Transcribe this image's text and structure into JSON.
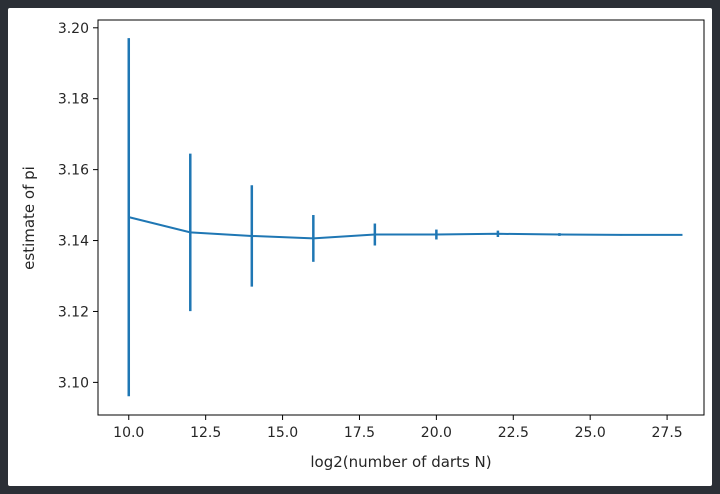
{
  "chart_data": {
    "type": "line",
    "title": "",
    "xlabel": "log2(number of darts N)",
    "ylabel": "estimate of pi",
    "xlim": [
      9.0,
      28.7
    ],
    "ylim": [
      3.0908,
      3.2022
    ],
    "xticks": [
      10.0,
      12.5,
      15.0,
      17.5,
      20.0,
      22.5,
      25.0,
      27.5
    ],
    "xtick_labels": [
      "10.0",
      "12.5",
      "15.0",
      "17.5",
      "20.0",
      "22.5",
      "25.0",
      "27.5"
    ],
    "yticks": [
      3.1,
      3.12,
      3.14,
      3.16,
      3.18,
      3.2
    ],
    "ytick_labels": [
      "3.10",
      "3.12",
      "3.14",
      "3.16",
      "3.18",
      "3.20"
    ],
    "grid": false,
    "series": [
      {
        "color": "#1f77b4",
        "x": [
          10,
          12,
          14,
          16,
          18,
          20,
          22,
          24,
          26,
          28
        ],
        "y": [
          3.1466,
          3.1423,
          3.1413,
          3.1406,
          3.1417,
          3.1417,
          3.1419,
          3.1417,
          3.1416,
          3.1416
        ],
        "yerr": [
          0.0505,
          0.0222,
          0.0143,
          0.0066,
          0.0031,
          0.0014,
          0.0009,
          0.0004,
          0.0002,
          0.0001
        ]
      }
    ]
  }
}
